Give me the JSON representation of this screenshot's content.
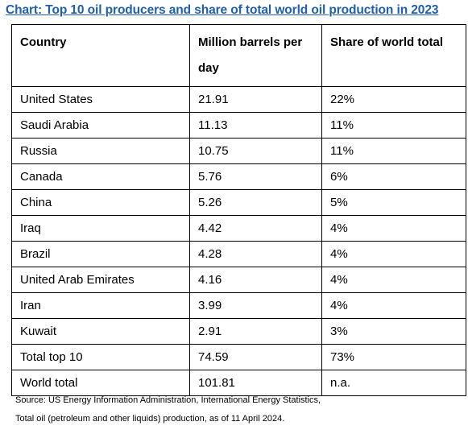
{
  "chart_data": {
    "type": "table",
    "title": "Chart: Top 10 oil producers and share of total world oil production in 2023",
    "headers": [
      "Country",
      "Million barrels per day",
      "Share of world total"
    ],
    "rows": [
      [
        "United States",
        "21.91",
        "22%"
      ],
      [
        "Saudi Arabia",
        "11.13",
        "11%"
      ],
      [
        "Russia",
        "10.75",
        "11%"
      ],
      [
        "Canada",
        "5.76",
        "6%"
      ],
      [
        "China",
        "5.26",
        "5%"
      ],
      [
        "Iraq",
        "4.42",
        "4%"
      ],
      [
        "Brazil",
        "4.28",
        "4%"
      ],
      [
        "United Arab Emirates",
        "4.16",
        "4%"
      ],
      [
        "Iran",
        "3.99",
        "4%"
      ],
      [
        "Kuwait",
        "2.91",
        "3%"
      ],
      [
        "Total top 10",
        "74.59",
        "73%"
      ],
      [
        "World total",
        "101.81",
        "n.a."
      ]
    ],
    "source_lines": [
      "Source: US Energy Information Administration, International Energy Statistics,",
      "Total oil (petroleum and other liquids) production, as of 11 April 2024."
    ]
  },
  "colors": {
    "title": "#1F5FAF",
    "border": "#000000",
    "text": "#000000"
  }
}
